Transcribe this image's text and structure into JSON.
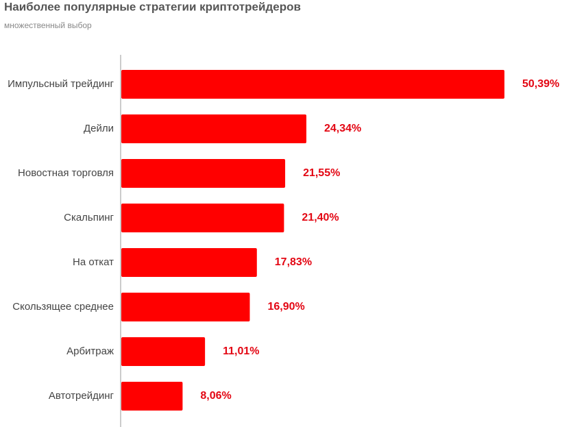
{
  "chart_data": {
    "type": "bar",
    "orientation": "horizontal",
    "title": "Наиболее популярные стратегии криптотрейдеров",
    "subtitle": "множественный выбор",
    "categories": [
      "Импульсный трейдинг",
      "Дейли",
      "Новостная торговля",
      "Скальпинг",
      "На откат",
      "Скользящее среднее",
      "Арбитраж",
      "Автотрейдинг"
    ],
    "values": [
      50.39,
      24.34,
      21.55,
      21.4,
      17.83,
      16.9,
      11.01,
      8.06
    ],
    "value_labels": [
      "50,39%",
      "24,34%",
      "21,55%",
      "21,40%",
      "17,83%",
      "16,90%",
      "11,01%",
      "8,06%"
    ],
    "color": "#ff0000"
  }
}
